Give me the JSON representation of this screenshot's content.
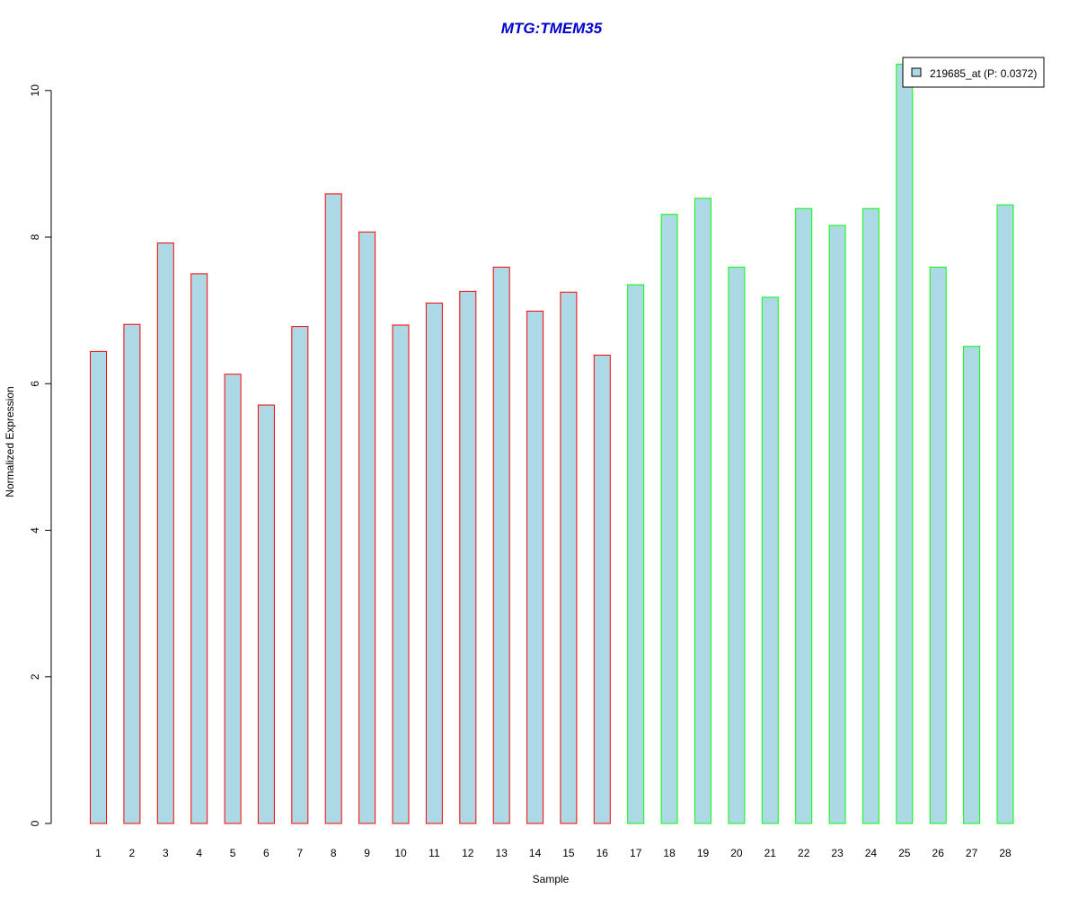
{
  "chart_data": {
    "type": "bar",
    "title": "MTG:TMEM35",
    "title_color": "#0000CC",
    "xlabel": "Sample",
    "ylabel": "Normalized Expression",
    "ylim": [
      0,
      10.5
    ],
    "yticks": [
      0,
      2,
      4,
      6,
      8,
      10
    ],
    "y_tick_labels": [
      "0",
      "2",
      "4",
      "6",
      "8",
      "10"
    ],
    "grid": false,
    "legend_position": "top-right",
    "fill_color": "#ADD8E6",
    "categories": [
      "1",
      "2",
      "3",
      "4",
      "5",
      "6",
      "7",
      "8",
      "9",
      "10",
      "11",
      "12",
      "13",
      "14",
      "15",
      "16",
      "17",
      "18",
      "19",
      "20",
      "21",
      "22",
      "23",
      "24",
      "25",
      "26",
      "27",
      "28"
    ],
    "series": [
      {
        "name": "219685_at (P: 0.0372)",
        "values": [
          6.44,
          6.81,
          7.92,
          7.5,
          6.13,
          5.71,
          6.78,
          8.59,
          8.07,
          6.8,
          7.1,
          7.26,
          7.59,
          6.99,
          7.25,
          6.39,
          7.35,
          8.31,
          8.53,
          7.59,
          7.18,
          8.39,
          8.16,
          8.39,
          10.36,
          7.59,
          6.51,
          8.44
        ]
      }
    ],
    "groups": [
      {
        "samples": [
          1,
          16
        ],
        "border_color": "#FF0000"
      },
      {
        "samples": [
          17,
          28
        ],
        "border_color": "#00FF00"
      }
    ]
  }
}
